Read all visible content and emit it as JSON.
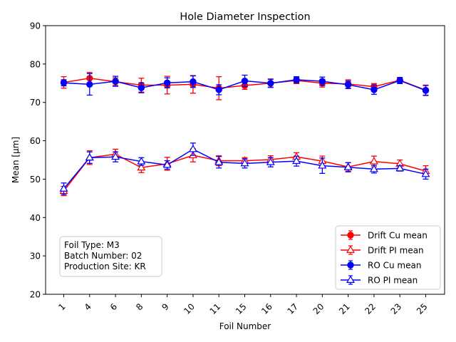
{
  "chart_data": {
    "type": "line",
    "title": "Hole Diameter Inspection",
    "xlabel": "Foil Number",
    "ylabel": "Mean [μm]",
    "ylim": [
      20,
      90
    ],
    "yticks": [
      20,
      30,
      40,
      50,
      60,
      70,
      80,
      90
    ],
    "categories": [
      "1",
      "4",
      "6",
      "8",
      "9",
      "10",
      "11",
      "15",
      "16",
      "17",
      "20",
      "21",
      "22",
      "23",
      "25"
    ],
    "grid": false,
    "legend_position": "lower-right",
    "annotation": [
      "Foil Type: M3",
      "Batch Number: 02",
      "Production Site: KR"
    ],
    "series": [
      {
        "name": "Drift Cu mean",
        "color": "#ff0000",
        "marker": "circle-filled",
        "values": [
          75.2,
          76.3,
          75.4,
          74.5,
          74.5,
          74.7,
          73.7,
          74.4,
          75.0,
          75.7,
          75.0,
          74.8,
          74.1,
          75.8,
          73.2
        ],
        "errors": [
          1.5,
          1.5,
          1.0,
          1.8,
          2.3,
          2.3,
          3.0,
          1.0,
          1.0,
          0.8,
          1.0,
          1.1,
          0.8,
          0.7,
          1.3
        ]
      },
      {
        "name": "Drift PI mean",
        "color": "#ff0000",
        "marker": "triangle-open",
        "values": [
          46.9,
          55.6,
          56.5,
          53.0,
          54.0,
          56.2,
          54.8,
          54.8,
          55.1,
          55.8,
          54.7,
          53.2,
          54.6,
          54.0,
          52.1
        ],
        "errors": [
          1.2,
          1.8,
          1.3,
          1.3,
          1.7,
          1.7,
          1.3,
          0.8,
          1.0,
          1.1,
          1.3,
          1.1,
          1.4,
          1.0,
          1.4
        ]
      },
      {
        "name": "RO Cu mean",
        "color": "#0000ff",
        "marker": "circle-filled",
        "values": [
          75.1,
          74.7,
          75.5,
          73.8,
          75.1,
          75.4,
          73.3,
          75.6,
          75.0,
          75.9,
          75.5,
          74.6,
          73.3,
          75.7,
          73.1
        ],
        "errors": [
          0.8,
          2.8,
          1.3,
          1.3,
          1.3,
          1.5,
          1.3,
          1.5,
          1.1,
          0.8,
          1.1,
          1.0,
          1.2,
          0.8,
          1.3
        ]
      },
      {
        "name": "RO PI mean",
        "color": "#0000ff",
        "marker": "triangle-open",
        "values": [
          47.5,
          55.6,
          55.8,
          54.6,
          53.7,
          57.8,
          54.4,
          54.1,
          54.4,
          54.7,
          53.5,
          53.1,
          52.6,
          52.8,
          51.3
        ],
        "errors": [
          1.5,
          1.5,
          1.3,
          1.0,
          1.1,
          1.6,
          1.5,
          1.2,
          1.2,
          1.3,
          2.0,
          1.2,
          1.0,
          0.7,
          1.3
        ]
      }
    ]
  }
}
